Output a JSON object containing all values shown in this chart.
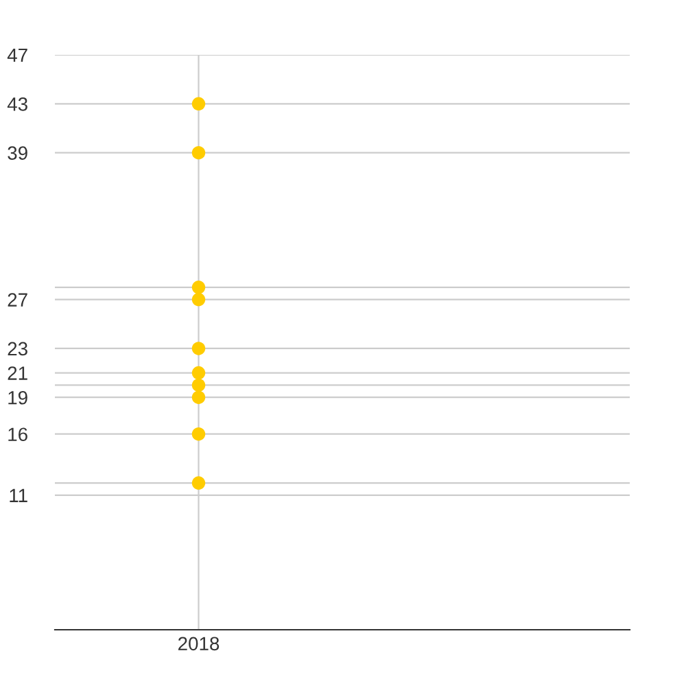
{
  "chart_data": {
    "type": "scatter",
    "categories": [
      "2018"
    ],
    "series": [
      {
        "color": "#ffcc00",
        "values": [
          43
        ]
      },
      {
        "color": "#ffcc00",
        "values": [
          39
        ]
      },
      {
        "color": "#ffcc00",
        "values": [
          28
        ]
      },
      {
        "color": "#ffcc00",
        "values": [
          27
        ]
      },
      {
        "color": "#ffcc00",
        "values": [
          23
        ]
      },
      {
        "color": "#ffcc00",
        "values": [
          21
        ]
      },
      {
        "color": "#ffcc00",
        "values": [
          20
        ]
      },
      {
        "color": "#ffcc00",
        "values": [
          19
        ]
      },
      {
        "color": "#ffcc00",
        "values": [
          16
        ]
      },
      {
        "color": "#ffcc00",
        "values": [
          12
        ]
      }
    ],
    "marker": "circle",
    "ylim": [
      0,
      47
    ],
    "yticks": [
      11,
      {
        "value": 12,
        "label": null
      },
      16,
      19,
      {
        "value": 20,
        "label": null
      },
      21,
      23,
      27,
      {
        "value": 28,
        "label": null
      },
      39,
      43,
      47
    ],
    "grid": true
  }
}
